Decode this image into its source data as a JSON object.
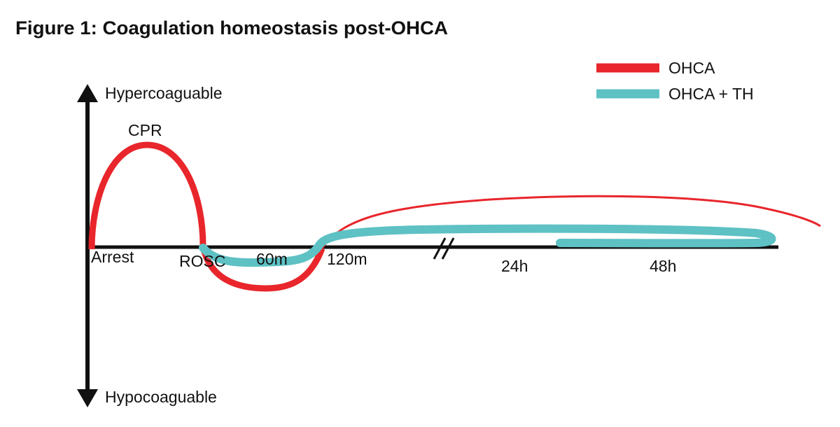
{
  "title": "Figure 1: Coagulation homeostasis post-OHCA",
  "legend": [
    {
      "label": "OHCA"
    },
    {
      "label": "OHCA + TH"
    }
  ],
  "axis": {
    "top": "Hypercoaguable",
    "bottom": "Hypocoaguable"
  },
  "annotation": "CPR",
  "timepoints": [
    "Arrest",
    "ROSC",
    "60m",
    "120m",
    "24h",
    "48h"
  ]
}
